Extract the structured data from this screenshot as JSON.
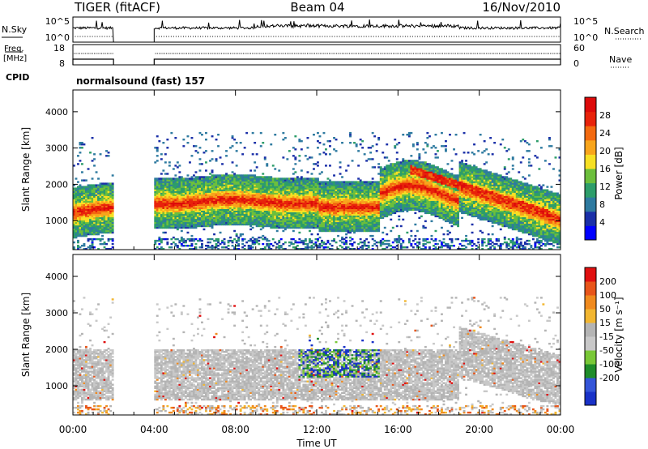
{
  "header": {
    "station": "TIGER (fitACF)",
    "beam": "Beam 04",
    "date": "16/Nov/2010"
  },
  "panels": {
    "nsky": {
      "left_label": "N.Sky",
      "right_label": "N.Search",
      "left_ticks": [
        "10^5",
        "10^0"
      ],
      "right_ticks": [
        "10^5",
        "10^0"
      ]
    },
    "freq": {
      "left_label_1": "Freq.",
      "left_label_2": "[MHz]",
      "right_label": "Nave",
      "left_ticks": [
        "18",
        "8"
      ],
      "right_ticks": [
        "60",
        "0"
      ]
    },
    "cpid": {
      "label": "CPID",
      "program": "normalsound (fast) 157"
    }
  },
  "chart_data": [
    {
      "type": "heatmap",
      "name": "power",
      "ylabel": "Slant Range [km]",
      "ylim": [
        200,
        4600
      ],
      "yticks": [
        1000,
        2000,
        3000,
        4000
      ],
      "xlim": [
        0,
        24
      ],
      "xticks": [
        "00:00",
        "04:00",
        "08:00",
        "12:00",
        "16:00",
        "20:00",
        "00:00"
      ],
      "colorbar": {
        "label": "Power [dB]",
        "range": [
          0,
          32
        ],
        "ticks": [
          4,
          8,
          12,
          16,
          20,
          24,
          28
        ],
        "colors": [
          "#0000ff",
          "#1a2fa8",
          "#2e7aa0",
          "#2d9d6a",
          "#6cbf3c",
          "#f7e024",
          "#f8a51c",
          "#f36a10",
          "#e8230b",
          "#dd0a0a"
        ]
      },
      "data_gap_hours": [
        2,
        4
      ]
    },
    {
      "type": "heatmap",
      "name": "velocity",
      "ylabel": "Slant Range [km]",
      "ylim": [
        200,
        4600
      ],
      "yticks": [
        1000,
        2000,
        3000,
        4000
      ],
      "xlim": [
        0,
        24
      ],
      "xticks": [
        "00:00",
        "04:00",
        "08:00",
        "12:00",
        "16:00",
        "20:00",
        "00:00"
      ],
      "xlabel": "Time UT",
      "colorbar": {
        "label": "Velocity [m s⁻¹]",
        "ticks": [
          "200",
          "100",
          "50",
          "15",
          "-15",
          "-50",
          "-100",
          "-200"
        ],
        "colors": [
          "#1932c8",
          "#3455d8",
          "#1f8c2a",
          "#79c837",
          "#c8c8c8",
          "#b4b4b4",
          "#f2b631",
          "#f08a1e",
          "#e8551a",
          "#e01010"
        ]
      },
      "data_gap_hours": [
        2,
        4
      ]
    }
  ]
}
